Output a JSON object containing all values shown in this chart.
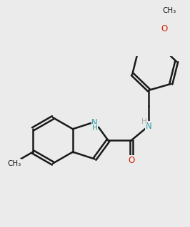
{
  "bg_color": "#ebebeb",
  "bond_color": "#1a1a1a",
  "n_color": "#3399aa",
  "o_color": "#cc2200",
  "bond_width": 1.8,
  "dbo": 0.12,
  "font_size": 8.5,
  "note": "All coordinates in data units 0-10"
}
